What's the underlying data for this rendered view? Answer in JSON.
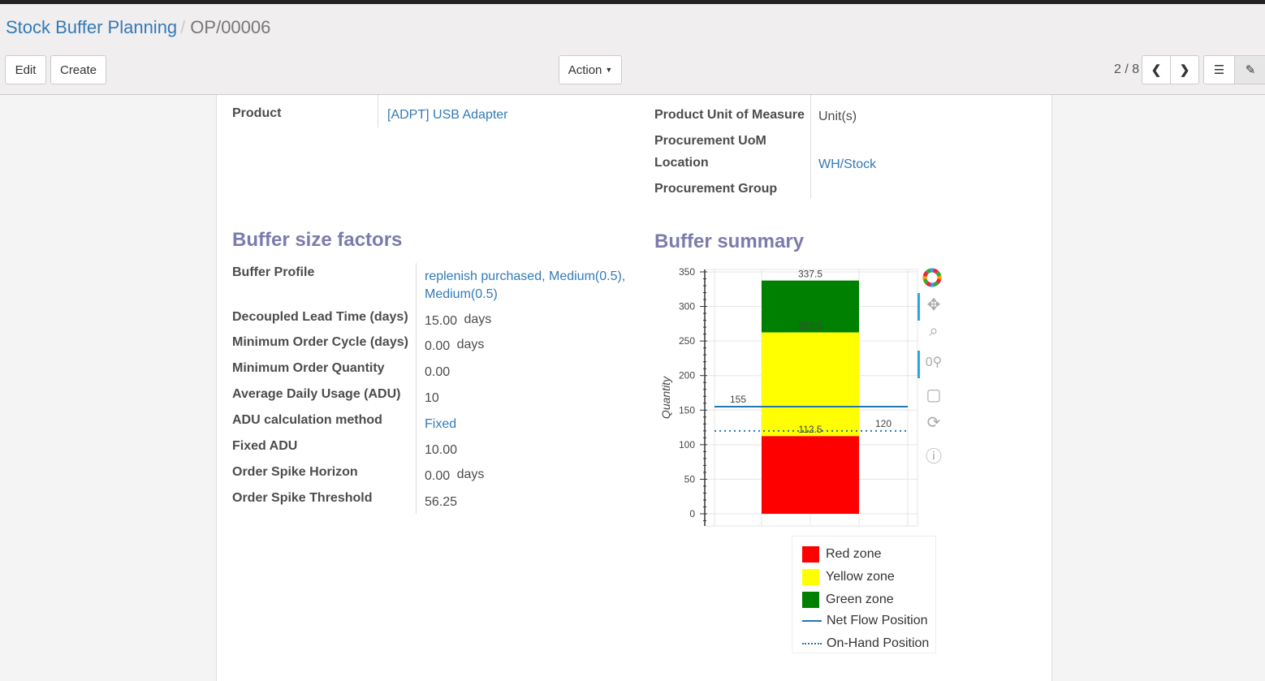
{
  "breadcrumb": {
    "parent": "Stock Buffer Planning",
    "current": "OP/00006"
  },
  "toolbar": {
    "edit": "Edit",
    "create": "Create",
    "action": "Action",
    "pager": "2 / 8"
  },
  "fields": {
    "product_label": "Product",
    "product_value": "[ADPT] USB Adapter",
    "uom_label": "Product Unit of Measure",
    "uom_value": "Unit(s)",
    "proc_uom_label": "Procurement UoM",
    "location_label": "Location",
    "location_value": "WH/Stock",
    "proc_group_label": "Procurement Group"
  },
  "factors": {
    "title": "Buffer size factors",
    "rows": [
      {
        "label": "Buffer Profile",
        "value": "replenish purchased, Medium(0.5),",
        "value2": "Medium(0.5)"
      },
      {
        "label": "Decoupled Lead Time (days)",
        "value": "15.00",
        "unit": "days"
      },
      {
        "label": "Minimum Order Cycle (days)",
        "value": "0.00",
        "unit": "days"
      },
      {
        "label": "Minimum Order Quantity",
        "value": "0.00"
      },
      {
        "label": "Average Daily Usage (ADU)",
        "value": "10"
      },
      {
        "label": "ADU calculation method",
        "value": "Fixed"
      },
      {
        "label": "Fixed ADU",
        "value": "10.00"
      },
      {
        "label": "Order Spike Horizon",
        "value": "0.00",
        "unit": "days"
      },
      {
        "label": "Order Spike Threshold",
        "value": "56.25"
      }
    ]
  },
  "summary": {
    "title": "Buffer summary"
  },
  "chart_data": {
    "type": "bar",
    "ylabel": "Quantity",
    "ylim": [
      -17.6,
      353.5
    ],
    "yticks": [
      "0",
      "50",
      "100",
      "150",
      "200",
      "250",
      "300",
      "350"
    ],
    "grid": true,
    "legend_position": "bottom",
    "stacked_zones": [
      {
        "name": "Red zone",
        "bottom": 0,
        "top": 112.5,
        "label": "112.5",
        "color": "#ff0000"
      },
      {
        "name": "Yellow zone",
        "bottom": 112.5,
        "top": 262.5,
        "label": "262.5",
        "color": "#ffff00"
      },
      {
        "name": "Green zone",
        "bottom": 262.5,
        "top": 337.5,
        "label": "337.5",
        "color": "#008000"
      }
    ],
    "lines": [
      {
        "name": "Net Flow Position",
        "value": 155,
        "label": "155",
        "style": "solid",
        "color": "#1f77b4"
      },
      {
        "name": "On-Hand Position",
        "value": 120,
        "label": "120",
        "style": "dotted",
        "color": "#1f77b4"
      }
    ]
  },
  "chart_tools": [
    "bokeh-logo-icon",
    "pan-icon",
    "box-zoom-icon",
    "wheel-zoom-icon",
    "save-icon",
    "reset-icon",
    "help-icon"
  ]
}
